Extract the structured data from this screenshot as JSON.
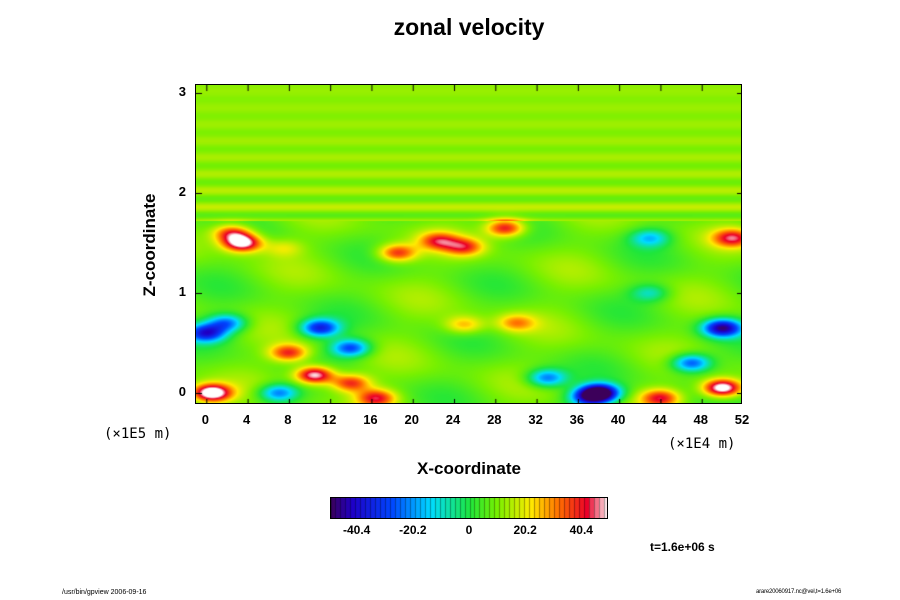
{
  "chart_data": {
    "type": "heatmap",
    "title": "zonal velocity",
    "xlabel": "X-coordinate",
    "ylabel": "Z-coordinate",
    "x_scale_label": "(×1E4 m)",
    "y_scale_label": "(×1E5 m)",
    "xlim": [
      -1,
      52
    ],
    "ylim": [
      -0.12,
      3.08
    ],
    "x_ticks": [
      "0",
      "4",
      "8",
      "12",
      "16",
      "20",
      "24",
      "28",
      "32",
      "36",
      "40",
      "44",
      "48",
      "52"
    ],
    "x_tick_values": [
      0,
      4,
      8,
      12,
      16,
      20,
      24,
      28,
      32,
      36,
      40,
      44,
      48,
      52
    ],
    "y_ticks": [
      "0",
      "1",
      "2",
      "3"
    ],
    "y_tick_values": [
      0,
      1,
      2,
      3
    ],
    "background_value": 8,
    "colorbar": {
      "range": [
        -50,
        50
      ],
      "ticks": [
        "-40.4",
        "-20.2",
        "0",
        "20.2",
        "40.4"
      ],
      "tick_values": [
        -40.4,
        -20.2,
        0,
        20.2,
        40.4
      ]
    },
    "features": [
      {
        "x": 3.5,
        "z": 1.5,
        "value": 55
      },
      {
        "x": 2.5,
        "z": 1.6,
        "value": 40
      },
      {
        "x": 7.5,
        "z": 1.45,
        "value": 20
      },
      {
        "x": 18.5,
        "z": 1.4,
        "value": 40
      },
      {
        "x": 22.5,
        "z": 1.52,
        "value": 35
      },
      {
        "x": 25,
        "z": 1.46,
        "value": 35
      },
      {
        "x": 29,
        "z": 1.65,
        "value": 45
      },
      {
        "x": 43,
        "z": 1.55,
        "value": -15
      },
      {
        "x": 51,
        "z": 1.55,
        "value": 40
      },
      {
        "x": 0,
        "z": 0.6,
        "value": -35
      },
      {
        "x": 2,
        "z": 0.7,
        "value": -25
      },
      {
        "x": 11,
        "z": 0.65,
        "value": -35
      },
      {
        "x": 14,
        "z": 0.45,
        "value": -30
      },
      {
        "x": 8,
        "z": 0.4,
        "value": 40
      },
      {
        "x": 10.5,
        "z": 0.18,
        "value": 55
      },
      {
        "x": 14,
        "z": 0.1,
        "value": 40
      },
      {
        "x": 16.5,
        "z": -0.05,
        "value": 40
      },
      {
        "x": 0.5,
        "z": 0.0,
        "value": 60
      },
      {
        "x": 7,
        "z": 0.0,
        "value": -25
      },
      {
        "x": 25,
        "z": 0.68,
        "value": 28
      },
      {
        "x": 30,
        "z": 0.7,
        "value": 28
      },
      {
        "x": 33,
        "z": 0.15,
        "value": -25
      },
      {
        "x": 38.1,
        "z": 0.0,
        "value": -60
      },
      {
        "x": 37,
        "z": -0.05,
        "value": -25
      },
      {
        "x": 44,
        "z": -0.05,
        "value": 40
      },
      {
        "x": 47,
        "z": 0.3,
        "value": -30
      },
      {
        "x": 50,
        "z": 0.65,
        "value": -45
      },
      {
        "x": 50,
        "z": 0.05,
        "value": 60
      },
      {
        "x": 43,
        "z": 1.0,
        "value": -10
      }
    ],
    "time_label": "t=1.6e+06 s"
  },
  "footer": {
    "left": "/usr/bin/gpview 2006-09-16",
    "right": "arare20060917.nc@vel,t=1.6e+06"
  }
}
